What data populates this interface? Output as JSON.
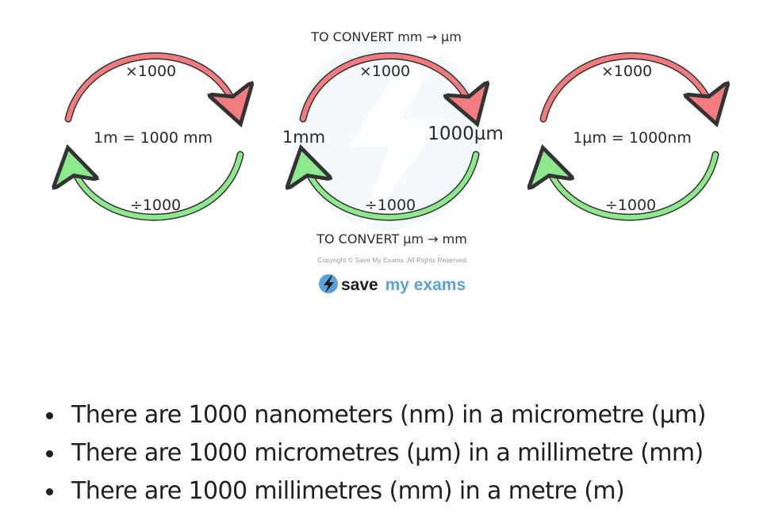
{
  "diagram": {
    "left_cycle": {
      "multiply_label": "×1000",
      "divide_label": "÷1000",
      "equation": "1m = 1000 mm"
    },
    "middle_cycle": {
      "top_caption": "TO CONVERT mm → µm",
      "bottom_caption": "TO CONVERT µm → mm",
      "multiply_label": "×1000",
      "divide_label": "÷1000",
      "left_unit": "1mm",
      "right_unit": "1000µm"
    },
    "right_cycle": {
      "multiply_label": "×1000",
      "divide_label": "÷1000",
      "equation": "1µm = 1000nm"
    },
    "copyright": "Copyright © Save My Exams. All Rights Reserved",
    "brand": {
      "word1": "save",
      "word2": "my",
      "word3": "exams"
    },
    "colors": {
      "multiply_arrow": "#f07c80",
      "divide_arrow": "#8ee88e",
      "brand_blue": "#5aa3d8"
    }
  },
  "bullets": [
    "There are 1000 nanometers (nm) in a micrometre (µm)",
    "There are 1000 micrometres (µm) in a millimetre (mm)",
    "There are 1000 millimetres (mm) in a metre (m)"
  ]
}
